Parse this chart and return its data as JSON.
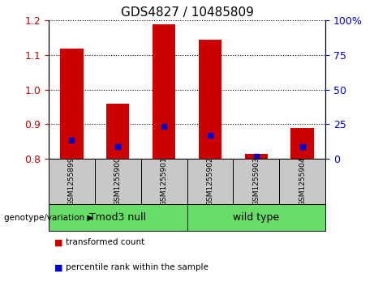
{
  "title": "GDS4827 / 10485809",
  "samples": [
    "GSM1255899",
    "GSM1255900",
    "GSM1255901",
    "GSM1255902",
    "GSM1255903",
    "GSM1255904"
  ],
  "red_top": [
    1.12,
    0.96,
    1.19,
    1.145,
    0.815,
    0.89
  ],
  "red_bottom": [
    0.8,
    0.8,
    0.8,
    0.8,
    0.8,
    0.8
  ],
  "blue_values": [
    0.855,
    0.835,
    0.895,
    0.867,
    0.808,
    0.835
  ],
  "ylim": [
    0.8,
    1.2
  ],
  "yticks": [
    0.8,
    0.9,
    1.0,
    1.1,
    1.2
  ],
  "right_yticks": [
    0,
    25,
    50,
    75,
    100
  ],
  "right_yticklabels": [
    "0",
    "25",
    "50",
    "75",
    "100%"
  ],
  "group1_label": "Tmod3 null",
  "group2_label": "wild type",
  "group_color": "#66dd66",
  "genotype_prefix": "genotype/variation",
  "red_color": "#cc0000",
  "blue_color": "#0000cc",
  "bar_width": 0.5,
  "sample_box_color": "#c8c8c8",
  "legend_red": "transformed count",
  "legend_blue": "percentile rank within the sample",
  "title_fontsize": 11
}
